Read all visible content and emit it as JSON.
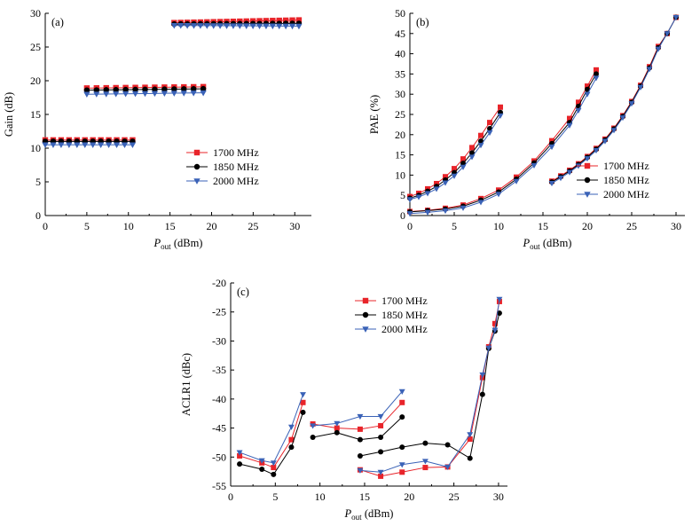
{
  "series_colors": {
    "1700 MHz": "#e8242a",
    "1850 MHz": "#000000",
    "2000 MHz": "#3a62b7"
  },
  "chart_data": [
    {
      "id": "a",
      "type": "scatter",
      "panel_label": "(a)",
      "title": "",
      "xlabel_main": "P",
      "xlabel_sub": "out",
      "xlabel_unit": " (dBm)",
      "ylabel": "Gain (dB)",
      "xlim": [
        0,
        32
      ],
      "ylim": [
        0,
        30
      ],
      "xticks": [
        0,
        5,
        10,
        15,
        20,
        25,
        30
      ],
      "yticks": [
        0,
        5,
        10,
        15,
        20,
        25,
        30
      ],
      "legend_position": "center-right",
      "series": [
        {
          "name": "1700 MHz",
          "marker": "square",
          "segments": [
            {
              "x0": 0,
              "x1": 10.5,
              "y0": 11.2,
              "y1": 11.2,
              "n": 12
            },
            {
              "x0": 5,
              "x1": 19,
              "y0": 18.9,
              "y1": 19.1,
              "n": 13
            },
            {
              "x0": 15.5,
              "x1": 30.5,
              "y0": 28.6,
              "y1": 29.0,
              "n": 20
            }
          ]
        },
        {
          "name": "1850 MHz",
          "marker": "circle",
          "segments": [
            {
              "x0": 0,
              "x1": 10.5,
              "y0": 11.0,
              "y1": 11.0,
              "n": 12
            },
            {
              "x0": 5,
              "x1": 19,
              "y0": 18.6,
              "y1": 18.8,
              "n": 13
            },
            {
              "x0": 15.5,
              "x1": 30.5,
              "y0": 28.4,
              "y1": 28.5,
              "n": 20
            }
          ]
        },
        {
          "name": "2000 MHz",
          "marker": "triangle-down",
          "segments": [
            {
              "x0": 0,
              "x1": 10.5,
              "y0": 10.5,
              "y1": 10.5,
              "n": 12
            },
            {
              "x0": 5,
              "x1": 19,
              "y0": 18.0,
              "y1": 18.2,
              "n": 13
            },
            {
              "x0": 15.5,
              "x1": 30.5,
              "y0": 28.2,
              "y1": 28.1,
              "n": 20
            }
          ]
        }
      ]
    },
    {
      "id": "b",
      "type": "scatter",
      "panel_label": "(b)",
      "title": "",
      "xlabel_main": "P",
      "xlabel_sub": "out",
      "xlabel_unit": " (dBm)",
      "ylabel": "PAE (%)",
      "xlim": [
        0,
        31
      ],
      "ylim": [
        0,
        50
      ],
      "xticks": [
        0,
        5,
        10,
        15,
        20,
        25,
        30
      ],
      "yticks": [
        0,
        5,
        10,
        15,
        20,
        25,
        30,
        35,
        40,
        45,
        50
      ],
      "legend_position": "center-right",
      "series": [
        {
          "name": "1700 MHz",
          "marker": "square",
          "curves": [
            {
              "x": [
                0,
                1,
                2,
                3,
                4,
                5,
                6,
                7,
                8,
                9,
                10.2
              ],
              "y": [
                4.7,
                5.5,
                6.6,
                7.9,
                9.6,
                11.6,
                14.0,
                16.8,
                19.8,
                23.0,
                26.8
              ]
            },
            {
              "x": [
                0,
                2,
                4,
                6,
                8,
                10,
                12,
                14,
                16,
                18,
                19,
                20,
                21
              ],
              "y": [
                1.0,
                1.3,
                1.8,
                2.6,
                4.2,
                6.3,
                9.5,
                13.5,
                18.5,
                24.0,
                28.0,
                32.0,
                36.0
              ]
            },
            {
              "x": [
                16,
                17,
                18,
                19,
                20,
                21,
                22,
                23,
                24,
                25,
                26,
                27,
                28,
                29,
                30
              ],
              "y": [
                8.5,
                9.8,
                11.2,
                12.8,
                14.6,
                16.6,
                18.9,
                21.6,
                24.7,
                28.2,
                32.2,
                36.8,
                41.8,
                45.0,
                49.0
              ]
            }
          ]
        },
        {
          "name": "1850 MHz",
          "marker": "circle",
          "curves": [
            {
              "x": [
                0,
                1,
                2,
                3,
                4,
                5,
                6,
                7,
                8,
                9,
                10.2
              ],
              "y": [
                4.3,
                5.0,
                6.0,
                7.2,
                8.8,
                10.6,
                12.9,
                15.5,
                18.4,
                21.5,
                25.5
              ]
            },
            {
              "x": [
                0,
                2,
                4,
                6,
                8,
                10,
                12,
                14,
                16,
                18,
                19,
                20,
                21
              ],
              "y": [
                0.9,
                1.2,
                1.6,
                2.3,
                3.8,
                5.8,
                9.0,
                13.0,
                17.8,
                23.0,
                27.0,
                31.2,
                35.0
              ]
            },
            {
              "x": [
                16,
                17,
                18,
                19,
                20,
                21,
                22,
                23,
                24,
                25,
                26,
                27,
                28,
                29,
                30
              ],
              "y": [
                8.3,
                9.6,
                11.0,
                12.6,
                14.4,
                16.4,
                18.7,
                21.4,
                24.5,
                28.0,
                32.0,
                36.5,
                41.5,
                45.0,
                49.0
              ]
            }
          ]
        },
        {
          "name": "2000 MHz",
          "marker": "triangle-down",
          "curves": [
            {
              "x": [
                0,
                1,
                2,
                3,
                4,
                5,
                6,
                7,
                8,
                9,
                10.2
              ],
              "y": [
                4.0,
                4.6,
                5.5,
                6.6,
                8.1,
                9.8,
                12.0,
                14.5,
                17.4,
                20.5,
                24.7
              ]
            },
            {
              "x": [
                0,
                2,
                4,
                6,
                8,
                10,
                12,
                14,
                16,
                18,
                19,
                20,
                21
              ],
              "y": [
                0.5,
                0.8,
                1.2,
                1.9,
                3.3,
                5.3,
                8.5,
                12.4,
                17.0,
                22.3,
                26.0,
                30.0,
                34.0
              ]
            },
            {
              "x": [
                16,
                17,
                18,
                19,
                20,
                21,
                22,
                23,
                24,
                25,
                26,
                27,
                28,
                29,
                30
              ],
              "y": [
                8.0,
                9.3,
                10.7,
                12.3,
                14.1,
                16.1,
                18.4,
                21.1,
                24.2,
                27.7,
                31.7,
                36.2,
                41.2,
                45.0,
                49.0
              ]
            }
          ]
        }
      ]
    },
    {
      "id": "c",
      "type": "line",
      "panel_label": "(c)",
      "title": "",
      "xlabel_main": "P",
      "xlabel_sub": "out",
      "xlabel_unit": " (dBm)",
      "ylabel": "ACLR1 (dBc)",
      "xlim": [
        0,
        31
      ],
      "ylim": [
        -55,
        -20
      ],
      "xticks": [
        0,
        5,
        10,
        15,
        20,
        25,
        30
      ],
      "yticks": [
        -55,
        -50,
        -45,
        -40,
        -35,
        -30,
        -25,
        -20
      ],
      "legend_position": "top-left",
      "series": [
        {
          "name": "1700 MHz",
          "marker": "square",
          "curves": [
            {
              "x": [
                1,
                3.5,
                4.8,
                6.8,
                8.1
              ],
              "y": [
                -49.8,
                -51.0,
                -51.8,
                -47.0,
                -40.6
              ]
            },
            {
              "x": [
                9.2,
                11.9,
                14.5,
                16.8,
                19.2
              ],
              "y": [
                -44.3,
                -45.0,
                -45.2,
                -44.6,
                -40.6
              ]
            },
            {
              "x": [
                14.5,
                16.8,
                19.2,
                21.8,
                24.3,
                26.8,
                28.2,
                28.9,
                29.6,
                30.1
              ],
              "y": [
                -52.2,
                -53.3,
                -52.6,
                -51.8,
                -51.7,
                -46.9,
                -36.3,
                -31.0,
                -27.0,
                -23.2
              ]
            }
          ]
        },
        {
          "name": "1850 MHz",
          "marker": "circle",
          "curves": [
            {
              "x": [
                1,
                3.5,
                4.8,
                6.8,
                8.1
              ],
              "y": [
                -51.2,
                -52.1,
                -53.0,
                -48.3,
                -42.3
              ]
            },
            {
              "x": [
                9.2,
                11.9,
                14.5,
                16.8,
                19.2
              ],
              "y": [
                -46.6,
                -45.8,
                -47.0,
                -46.6,
                -43.1
              ]
            },
            {
              "x": [
                14.5,
                16.8,
                19.2,
                21.8,
                24.3,
                26.8,
                28.2,
                28.9,
                29.6,
                30.1
              ],
              "y": [
                -49.8,
                -49.1,
                -48.3,
                -47.6,
                -47.9,
                -50.2,
                -39.2,
                -31.3,
                -28.3,
                -25.2
              ]
            }
          ]
        },
        {
          "name": "2000 MHz",
          "marker": "triangle-down",
          "curves": [
            {
              "x": [
                1,
                3.5,
                4.8,
                6.8,
                8.1
              ],
              "y": [
                -49.2,
                -50.6,
                -51.0,
                -44.8,
                -39.2
              ]
            },
            {
              "x": [
                9.2,
                11.9,
                14.5,
                16.8,
                19.2
              ],
              "y": [
                -44.6,
                -44.2,
                -43.0,
                -43.0,
                -38.7
              ]
            },
            {
              "x": [
                14.5,
                16.8,
                19.2,
                21.8,
                24.3,
                26.8,
                28.2,
                28.9,
                29.6,
                30.1
              ],
              "y": [
                -52.3,
                -52.6,
                -51.3,
                -50.7,
                -51.7,
                -46.1,
                -35.8,
                -31.2,
                -28.1,
                -22.8
              ]
            }
          ]
        }
      ]
    }
  ]
}
